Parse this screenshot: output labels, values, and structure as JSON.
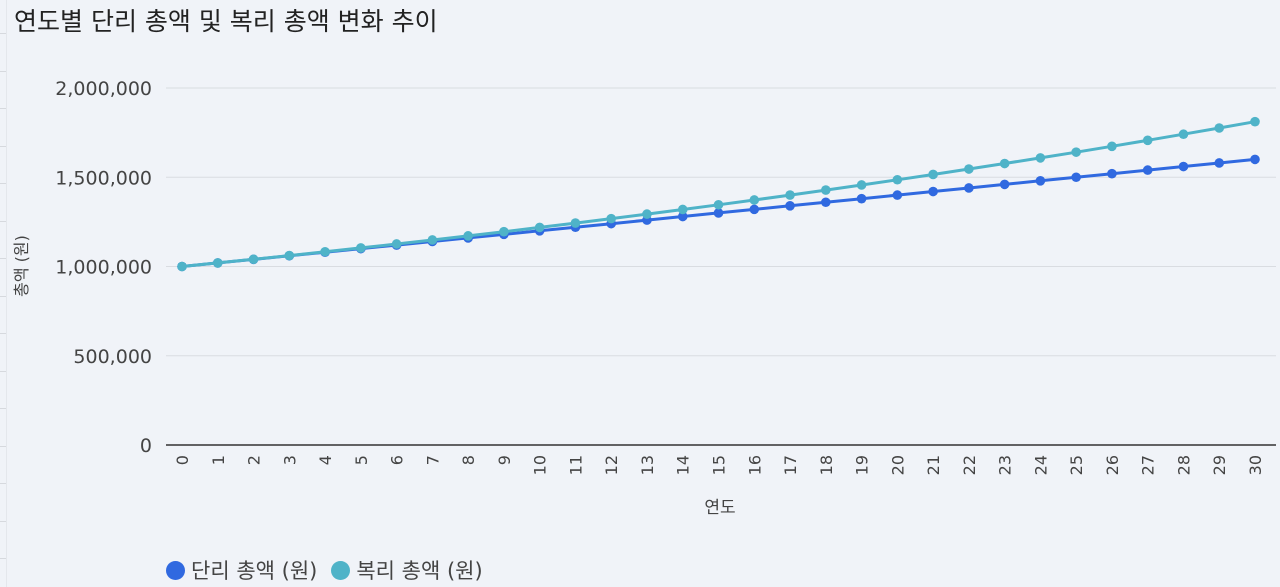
{
  "title": "연도별 단리 총액 및 복리 총액 변화 추이",
  "chart_data": {
    "type": "line",
    "title": "연도별 단리 총액 및 복리 총액 변화 추이",
    "xlabel": "연도",
    "ylabel": "총액 (원)",
    "x": [
      0,
      1,
      2,
      3,
      4,
      5,
      6,
      7,
      8,
      9,
      10,
      11,
      12,
      13,
      14,
      15,
      16,
      17,
      18,
      19,
      20,
      21,
      22,
      23,
      24,
      25,
      26,
      27,
      28,
      29,
      30
    ],
    "ylim": [
      0,
      2000000
    ],
    "yticks": [
      0,
      500000,
      1000000,
      1500000,
      2000000
    ],
    "ytick_labels": [
      "0",
      "500,000",
      "1,000,000",
      "1,500,000",
      "2,000,000"
    ],
    "grid": true,
    "legend_position": "bottom-left",
    "series": [
      {
        "name": "단리 총액 (원)",
        "color": "#3069e0",
        "values": [
          1000000,
          1020000,
          1040000,
          1060000,
          1080000,
          1100000,
          1120000,
          1140000,
          1160000,
          1180000,
          1200000,
          1220000,
          1240000,
          1260000,
          1280000,
          1300000,
          1320000,
          1340000,
          1360000,
          1380000,
          1400000,
          1420000,
          1440000,
          1460000,
          1480000,
          1500000,
          1520000,
          1540000,
          1560000,
          1580000,
          1600000
        ]
      },
      {
        "name": "복리 총액 (원)",
        "color": "#4fb3c8",
        "values": [
          1000000,
          1020000,
          1040400,
          1061208,
          1082432,
          1104081,
          1126162,
          1148686,
          1171659,
          1195093,
          1218994,
          1243374,
          1268242,
          1293607,
          1319479,
          1345868,
          1372786,
          1400241,
          1428246,
          1456811,
          1485947,
          1515666,
          1545980,
          1576899,
          1608437,
          1640606,
          1673418,
          1706886,
          1741024,
          1775845,
          1811362
        ]
      }
    ]
  },
  "legend": {
    "items": [
      {
        "label": "단리 총액 (원)",
        "color": "#3069e0"
      },
      {
        "label": "복리 총액 (원)",
        "color": "#4fb3c8"
      }
    ]
  }
}
